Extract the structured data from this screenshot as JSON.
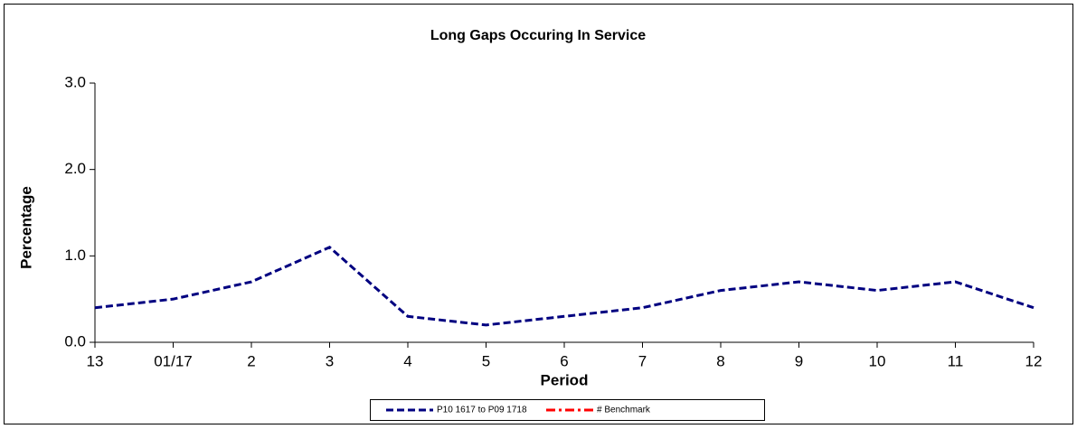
{
  "chart_data": {
    "type": "line",
    "title": "Long Gaps Occuring In Service",
    "x_label": "Period",
    "y_label": "Percentage",
    "categories": [
      "13",
      "01/17",
      "2",
      "3",
      "4",
      "5",
      "6",
      "7",
      "8",
      "9",
      "10",
      "11",
      "12"
    ],
    "series": [
      {
        "name": "P10 1617 to P09 1718",
        "color": "#000080",
        "values": [
          0.4,
          0.5,
          0.7,
          1.1,
          0.3,
          0.2,
          0.3,
          0.4,
          0.6,
          0.7,
          0.6,
          0.7,
          0.4
        ]
      },
      {
        "name": "# Benchmark",
        "color": "#ff0000",
        "values": [
          null,
          null,
          null,
          null,
          null,
          null,
          null,
          null,
          null,
          null,
          null,
          null,
          null
        ]
      }
    ],
    "ylim": [
      0,
      3
    ],
    "yticks": [
      {
        "value": 0,
        "label": "0.0"
      },
      {
        "value": 1,
        "label": "1.0"
      },
      {
        "value": 2,
        "label": "2.0"
      },
      {
        "value": 3,
        "label": "3.0"
      }
    ],
    "grid": false
  }
}
